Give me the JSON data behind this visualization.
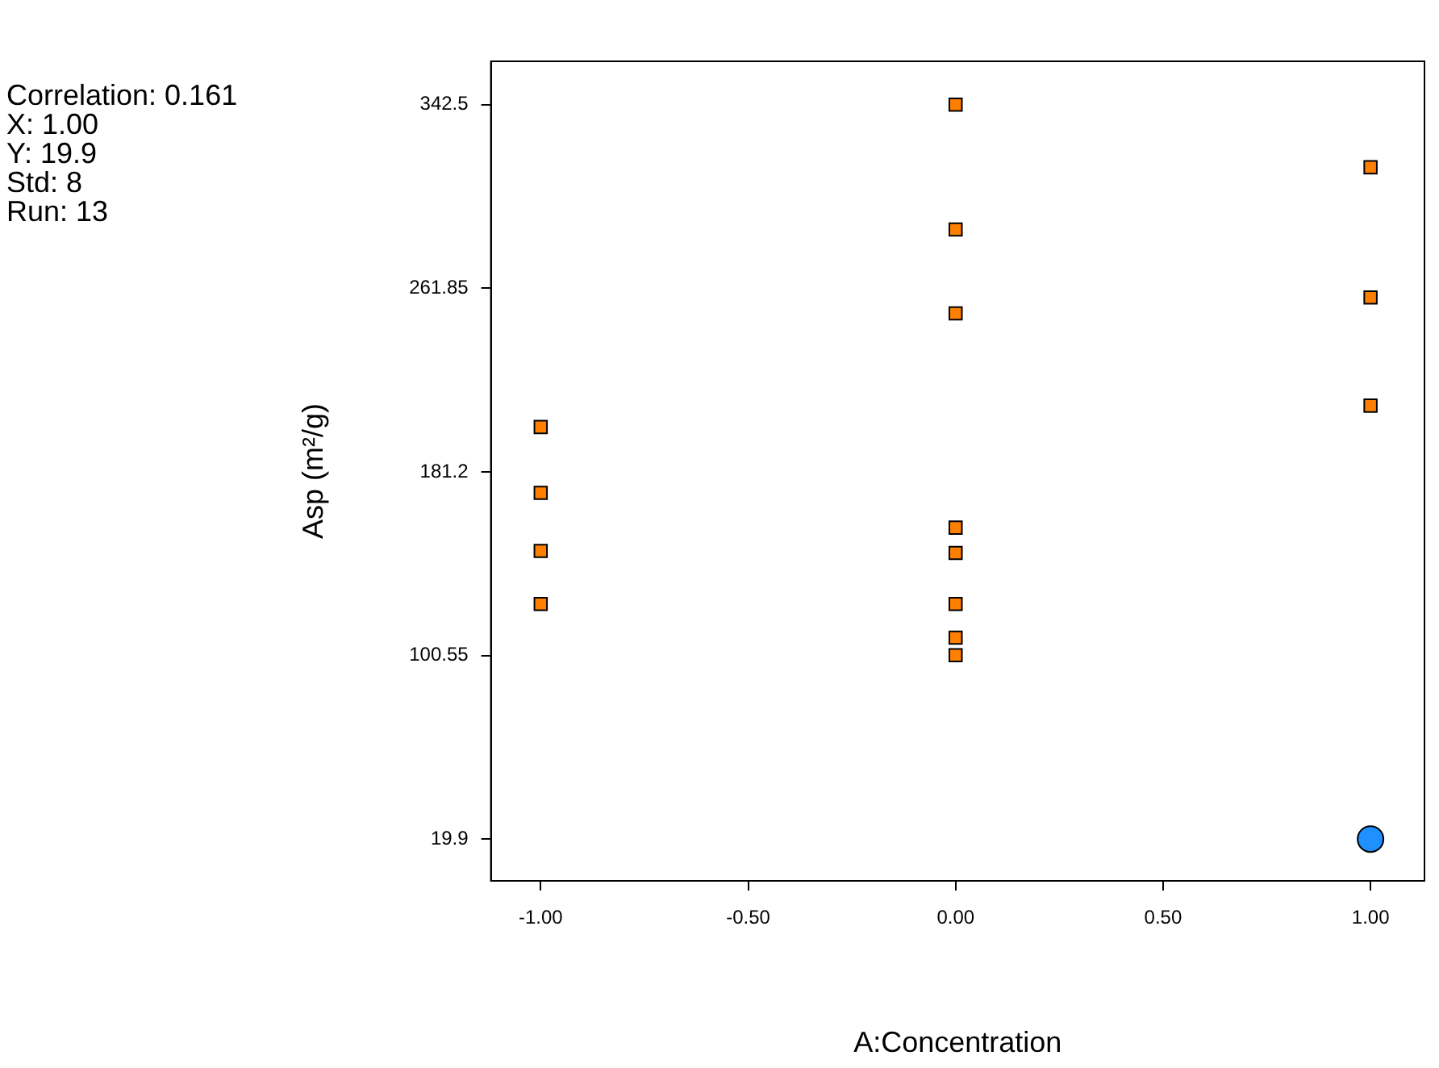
{
  "chart_data": {
    "type": "scatter",
    "xlabel": "A:Concentration",
    "ylabel": "Asp (m²/g)",
    "annotations": [
      "Correlation: 0.161",
      "X: 1.00",
      "Y: 19.9",
      "Std: 8",
      "Run: 13"
    ],
    "xlim": [
      -1.12,
      1.13
    ],
    "xticks": [
      {
        "value": -1,
        "label": "-1.00"
      },
      {
        "value": -0.5,
        "label": "-0.50"
      },
      {
        "value": 0,
        "label": "0.00"
      },
      {
        "value": 0.5,
        "label": "0.50"
      },
      {
        "value": 1,
        "label": "1.00"
      }
    ],
    "ylim": [
      1.55,
      361.55
    ],
    "yticks": [
      19.9,
      100.55,
      181.2,
      261.85,
      342.5
    ],
    "grid": false,
    "legend": false,
    "series": [
      {
        "color": "#ff8000",
        "marker": "square",
        "x": [
          -1,
          -1,
          -1,
          -1,
          0,
          0,
          0,
          0,
          0,
          0,
          0,
          0,
          1,
          1,
          1
        ],
        "values": [
          200.9,
          172.0,
          146.5,
          123.2,
          342.5,
          287.7,
          250.8,
          156.7,
          145.6,
          123.2,
          108.4,
          100.7,
          315.0,
          257.8,
          210.3
        ]
      },
      {
        "color": "#1e90ff",
        "marker": "circle",
        "x": [
          1
        ],
        "values": [
          19.9
        ]
      }
    ]
  }
}
